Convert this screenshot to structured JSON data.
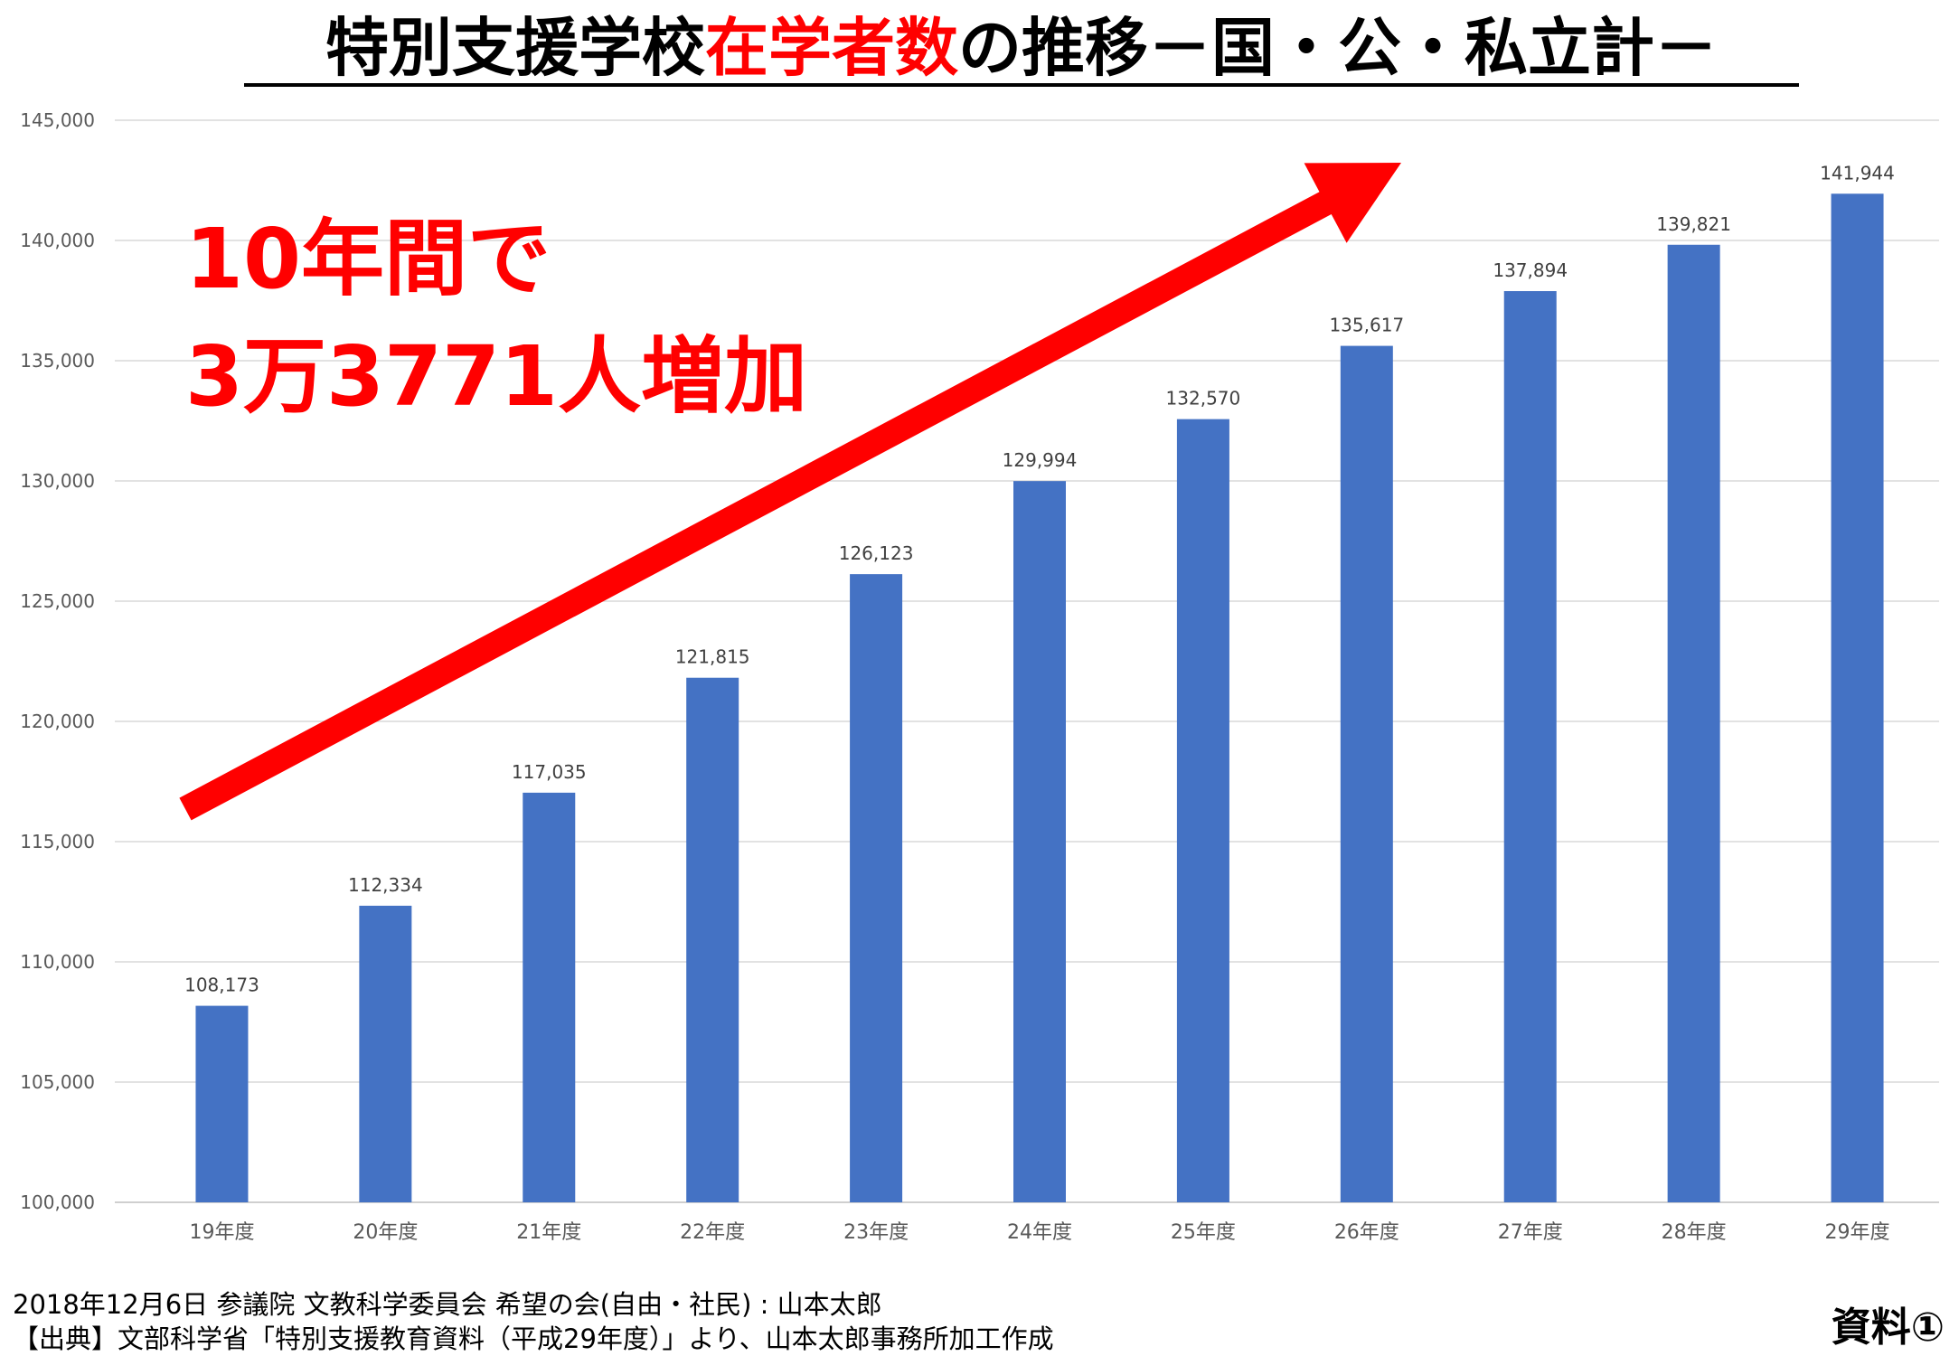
{
  "title": {
    "prefix": "特別支援学校",
    "highlight": "在学者数",
    "suffix": "の推移－国・公・私立計－"
  },
  "callout": {
    "line1": "10年間で",
    "line2": "3万3771人増加",
    "color": "#ff0000"
  },
  "chart_data": {
    "type": "bar",
    "categories": [
      "19年度",
      "20年度",
      "21年度",
      "22年度",
      "23年度",
      "24年度",
      "25年度",
      "26年度",
      "27年度",
      "28年度",
      "29年度"
    ],
    "values": [
      108173,
      112334,
      117035,
      121815,
      126123,
      129994,
      132570,
      135617,
      137894,
      139821,
      141944
    ],
    "value_labels": [
      "108,173",
      "112,334",
      "117,035",
      "121,815",
      "126,123",
      "129,994",
      "132,570",
      "135,617",
      "137,894",
      "139,821",
      "141,944"
    ],
    "yticks": [
      "100,000",
      "105,000",
      "110,000",
      "115,000",
      "120,000",
      "125,000",
      "130,000",
      "135,000",
      "140,000",
      "145,000"
    ],
    "ylim": [
      100000,
      145000
    ],
    "grid": true,
    "bar_color": "#4472c4",
    "arrow_color": "#ff0000"
  },
  "footer": {
    "line1": "2018年12月6日 参議院 文教科学委員会 希望の会(自由・社民) : 山本太郎",
    "line2": "【出典】文部科学省「特別支援教育資料（平成29年度）」より、山本太郎事務所加工作成"
  },
  "doc_label": "資料①"
}
